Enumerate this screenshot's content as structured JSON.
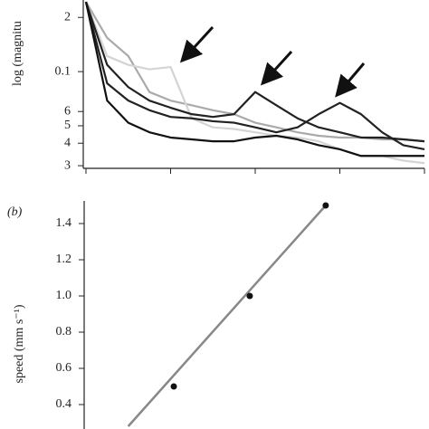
{
  "chart_data": [
    {
      "type": "line",
      "y_label": "log (magnitu",
      "log_scale": "y",
      "xlim": [
        0,
        4
      ],
      "xticks": [
        0,
        1,
        2,
        3,
        4
      ],
      "ylim": [
        0.029,
        0.25
      ],
      "yticks": [
        {
          "value": 0.2,
          "label": "2"
        },
        0.1,
        {
          "value": 0.06,
          "label": "6"
        },
        {
          "value": 0.05,
          "label": "5"
        },
        {
          "value": 0.04,
          "label": "4"
        },
        {
          "value": 0.03,
          "label": "3"
        }
      ],
      "x": [
        0,
        0.25,
        0.5,
        0.75,
        1,
        1.25,
        1.5,
        1.75,
        2,
        2.25,
        2.5,
        2.75,
        3,
        3.25,
        3.5,
        3.75,
        4
      ],
      "series": [
        {
          "color": "#aaaaaa",
          "values": [
            0.244,
            0.154,
            0.122,
            0.077,
            0.069,
            0.065,
            0.061,
            0.058,
            0.052,
            0.049,
            0.046,
            0.044,
            0.043,
            0.043,
            0.042,
            0.042,
            0.041
          ]
        },
        {
          "color": "#d4d4d4",
          "values": [
            0.244,
            0.122,
            0.109,
            0.103,
            0.106,
            0.055,
            0.049,
            0.048,
            0.046,
            0.044,
            0.043,
            0.041,
            0.037,
            0.034,
            0.034,
            0.032,
            0.031
          ]
        },
        {
          "color": "#222222",
          "values": [
            0.244,
            0.109,
            0.082,
            0.069,
            0.063,
            0.058,
            0.056,
            0.058,
            0.077,
            0.065,
            0.055,
            0.049,
            0.046,
            0.043,
            0.043,
            0.042,
            0.041
          ]
        },
        {
          "color": "#222222",
          "values": [
            0.244,
            0.086,
            0.069,
            0.061,
            0.056,
            0.055,
            0.053,
            0.052,
            0.049,
            0.046,
            0.049,
            0.058,
            0.067,
            0.058,
            0.046,
            0.039,
            0.037
          ]
        },
        {
          "color": "#111111",
          "values": [
            0.244,
            0.069,
            0.052,
            0.046,
            0.043,
            0.042,
            0.041,
            0.041,
            0.043,
            0.044,
            0.042,
            0.039,
            0.037,
            0.034,
            0.034,
            0.034,
            0.034
          ]
        }
      ]
    },
    {
      "type": "scatter",
      "panel_label": "(b)",
      "y_label": "speed (mm s⁻¹)",
      "xlim": [
        0.82,
        5.36
      ],
      "ylim": [
        0.265,
        1.525
      ],
      "yticks": [
        0.4,
        0.6,
        0.8,
        {
          "value": 1.0,
          "label": "1.0"
        },
        1.2,
        1.4
      ],
      "x": [
        2,
        3,
        4
      ],
      "values": [
        0.5,
        1.0,
        1.5
      ],
      "color": "#111111",
      "fit": {
        "x": [
          1.4,
          4
        ],
        "values": [
          0.28,
          1.5
        ],
        "color": "#888888"
      }
    }
  ]
}
